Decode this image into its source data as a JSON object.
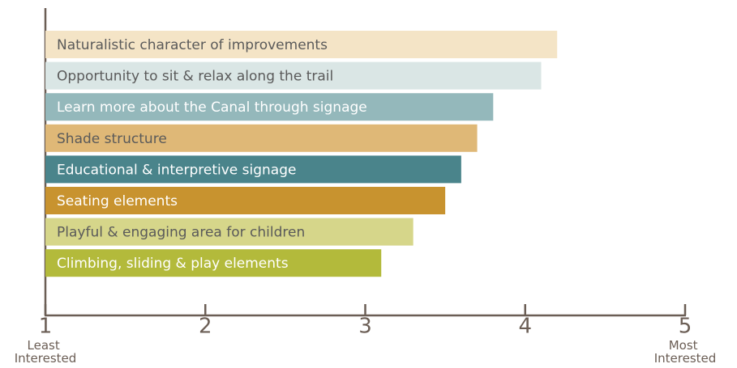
{
  "chart_data": {
    "type": "bar",
    "orientation": "horizontal",
    "categories": [
      "Naturalistic character of improvements",
      "Opportunity to sit & relax along the trail",
      "Learn more about the Canal through signage",
      "Shade structure",
      "Educational & interpretive signage",
      "Seating elements",
      "Playful & engaging area for children",
      "Climbing, sliding & play elements"
    ],
    "values": [
      4.2,
      4.1,
      3.8,
      3.7,
      3.6,
      3.5,
      3.3,
      3.1
    ],
    "colors": [
      "#f4e4c6",
      "#dae6e5",
      "#94b8bb",
      "#dfb877",
      "#4a848b",
      "#c8932f",
      "#d6d68a",
      "#b3ba3b"
    ],
    "text_colors": [
      "#5a5a5a",
      "#5a5a5a",
      "#ffffff",
      "#5a5a5a",
      "#ffffff",
      "#ffffff",
      "#5a5a5a",
      "#ffffff"
    ],
    "xlim": [
      1,
      5
    ],
    "xticks": [
      1,
      2,
      3,
      4,
      5
    ],
    "annotations": [
      {
        "text": "Least Interested",
        "x": 1
      },
      {
        "text": "Most Interested",
        "x": 5
      }
    ]
  }
}
